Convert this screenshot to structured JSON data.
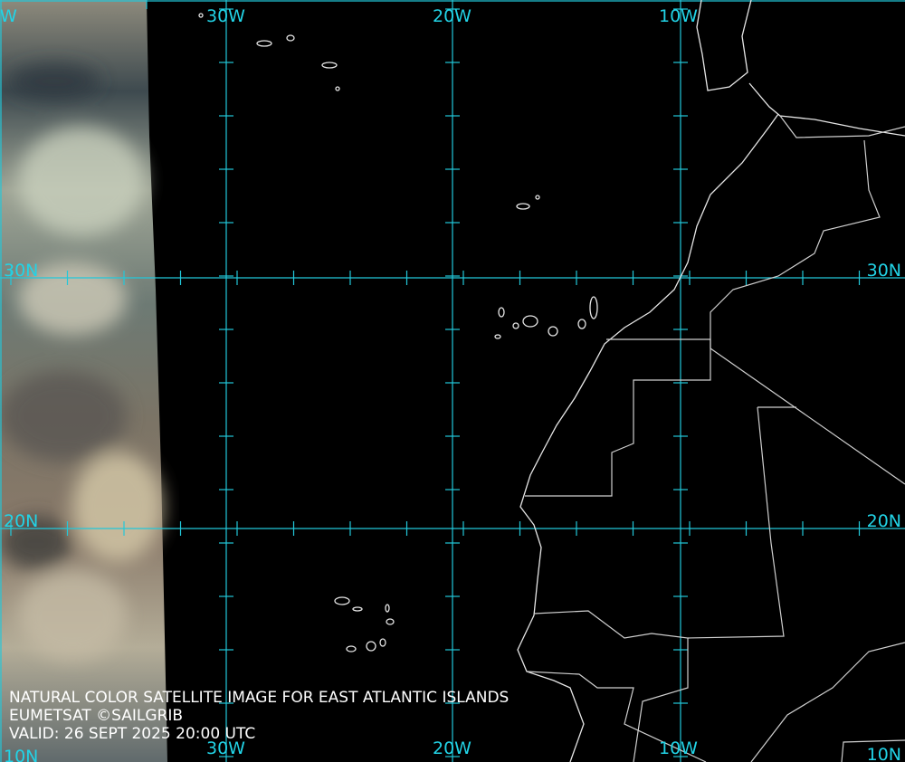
{
  "grid": {
    "lon_labels_top": [
      "W",
      "30W",
      "20W",
      "10W"
    ],
    "lon_labels_bottom": [
      "30W",
      "20W",
      "10W"
    ],
    "lat_labels_left": [
      "30N",
      "20N",
      "10N"
    ],
    "lat_labels_right": [
      "30N",
      "20N",
      "10N"
    ]
  },
  "caption": {
    "line1": "NATURAL COLOR SATELLITE IMAGE FOR EAST ATLANTIC ISLANDS",
    "line2": "EUMETSAT ©SAILGRIB",
    "line3": "VALID:  26 SEPT 2025 20:00 UTC"
  }
}
